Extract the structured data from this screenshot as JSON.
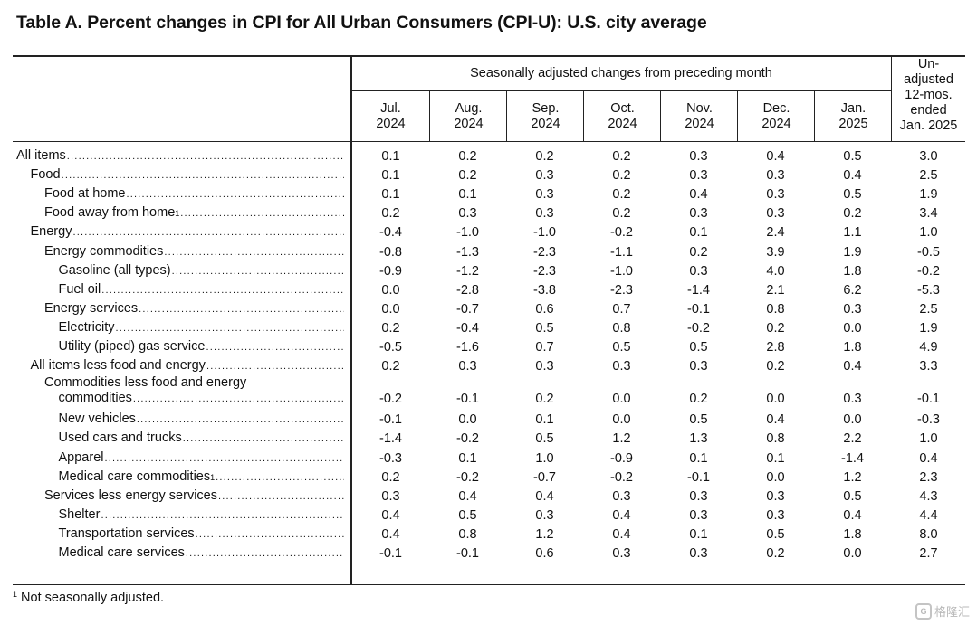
{
  "title": "Table A. Percent changes in CPI for All Urban Consumers (CPI-U): U.S. city average",
  "header": {
    "sa_label": "Seasonally adjusted changes from preceding month",
    "months": [
      {
        "mon": "Jul.",
        "yr": "2024"
      },
      {
        "mon": "Aug.",
        "yr": "2024"
      },
      {
        "mon": "Sep.",
        "yr": "2024"
      },
      {
        "mon": "Oct.",
        "yr": "2024"
      },
      {
        "mon": "Nov.",
        "yr": "2024"
      },
      {
        "mon": "Dec.",
        "yr": "2024"
      },
      {
        "mon": "Jan.",
        "yr": "2025"
      }
    ],
    "unadj_lines": [
      "Un-",
      "adjusted",
      "12-mos.",
      "ended",
      "Jan. 2025"
    ]
  },
  "rows": [
    {
      "label": "All items",
      "indent": 0,
      "values": [
        "0.1",
        "0.2",
        "0.2",
        "0.2",
        "0.3",
        "0.4",
        "0.5",
        "3.0"
      ]
    },
    {
      "label": "Food",
      "indent": 1,
      "values": [
        "0.1",
        "0.2",
        "0.3",
        "0.2",
        "0.3",
        "0.3",
        "0.4",
        "2.5"
      ]
    },
    {
      "label": "Food at home",
      "indent": 2,
      "values": [
        "0.1",
        "0.1",
        "0.3",
        "0.2",
        "0.4",
        "0.3",
        "0.5",
        "1.9"
      ]
    },
    {
      "label": "Food away from home",
      "footnote": "1",
      "indent": 2,
      "values": [
        "0.2",
        "0.3",
        "0.3",
        "0.2",
        "0.3",
        "0.3",
        "0.2",
        "3.4"
      ]
    },
    {
      "label": "Energy",
      "indent": 1,
      "values": [
        "-0.4",
        "-1.0",
        "-1.0",
        "-0.2",
        "0.1",
        "2.4",
        "1.1",
        "1.0"
      ]
    },
    {
      "label": "Energy commodities",
      "indent": 2,
      "values": [
        "-0.8",
        "-1.3",
        "-2.3",
        "-1.1",
        "0.2",
        "3.9",
        "1.9",
        "-0.5"
      ]
    },
    {
      "label": "Gasoline (all types)",
      "indent": 3,
      "values": [
        "-0.9",
        "-1.2",
        "-2.3",
        "-1.0",
        "0.3",
        "4.0",
        "1.8",
        "-0.2"
      ]
    },
    {
      "label": "Fuel oil",
      "indent": 3,
      "values": [
        "0.0",
        "-2.8",
        "-3.8",
        "-2.3",
        "-1.4",
        "2.1",
        "6.2",
        "-5.3"
      ]
    },
    {
      "label": "Energy services",
      "indent": 2,
      "values": [
        "0.0",
        "-0.7",
        "0.6",
        "0.7",
        "-0.1",
        "0.8",
        "0.3",
        "2.5"
      ]
    },
    {
      "label": "Electricity",
      "indent": 3,
      "values": [
        "0.2",
        "-0.4",
        "0.5",
        "0.8",
        "-0.2",
        "0.2",
        "0.0",
        "1.9"
      ]
    },
    {
      "label": "Utility (piped) gas service",
      "indent": 3,
      "values": [
        "-0.5",
        "-1.6",
        "0.7",
        "0.5",
        "0.5",
        "2.8",
        "1.8",
        "4.9"
      ]
    },
    {
      "label": "All items less food and energy",
      "indent": 1,
      "values": [
        "0.2",
        "0.3",
        "0.3",
        "0.3",
        "0.3",
        "0.2",
        "0.4",
        "3.3"
      ]
    },
    {
      "label_first": "Commodities less food and energy",
      "label": "commodities",
      "indent": 2,
      "wrap": true,
      "values": [
        "-0.2",
        "-0.1",
        "0.2",
        "0.0",
        "0.2",
        "0.0",
        "0.3",
        "-0.1"
      ]
    },
    {
      "label": "New vehicles",
      "indent": 3,
      "values": [
        "-0.1",
        "0.0",
        "0.1",
        "0.0",
        "0.5",
        "0.4",
        "0.0",
        "-0.3"
      ]
    },
    {
      "label": "Used cars and trucks",
      "indent": 3,
      "values": [
        "-1.4",
        "-0.2",
        "0.5",
        "1.2",
        "1.3",
        "0.8",
        "2.2",
        "1.0"
      ]
    },
    {
      "label": "Apparel",
      "indent": 3,
      "values": [
        "-0.3",
        "0.1",
        "1.0",
        "-0.9",
        "0.1",
        "0.1",
        "-1.4",
        "0.4"
      ]
    },
    {
      "label": "Medical care commodities",
      "footnote": "1",
      "indent": 3,
      "values": [
        "0.2",
        "-0.2",
        "-0.7",
        "-0.2",
        "-0.1",
        "0.0",
        "1.2",
        "2.3"
      ]
    },
    {
      "label": "Services less energy services",
      "indent": 2,
      "values": [
        "0.3",
        "0.4",
        "0.4",
        "0.3",
        "0.3",
        "0.3",
        "0.5",
        "4.3"
      ]
    },
    {
      "label": "Shelter",
      "indent": 3,
      "values": [
        "0.4",
        "0.5",
        "0.3",
        "0.4",
        "0.3",
        "0.3",
        "0.4",
        "4.4"
      ]
    },
    {
      "label": "Transportation services",
      "indent": 3,
      "values": [
        "0.4",
        "0.8",
        "1.2",
        "0.4",
        "0.1",
        "0.5",
        "1.8",
        "8.0"
      ]
    },
    {
      "label": "Medical care services",
      "indent": 3,
      "values": [
        "-0.1",
        "-0.1",
        "0.6",
        "0.3",
        "0.3",
        "0.2",
        "0.0",
        "2.7"
      ]
    }
  ],
  "footnote": {
    "mark": "1",
    "text": "Not seasonally adjusted."
  },
  "watermark": {
    "text": "格隆汇",
    "logo": "G"
  }
}
